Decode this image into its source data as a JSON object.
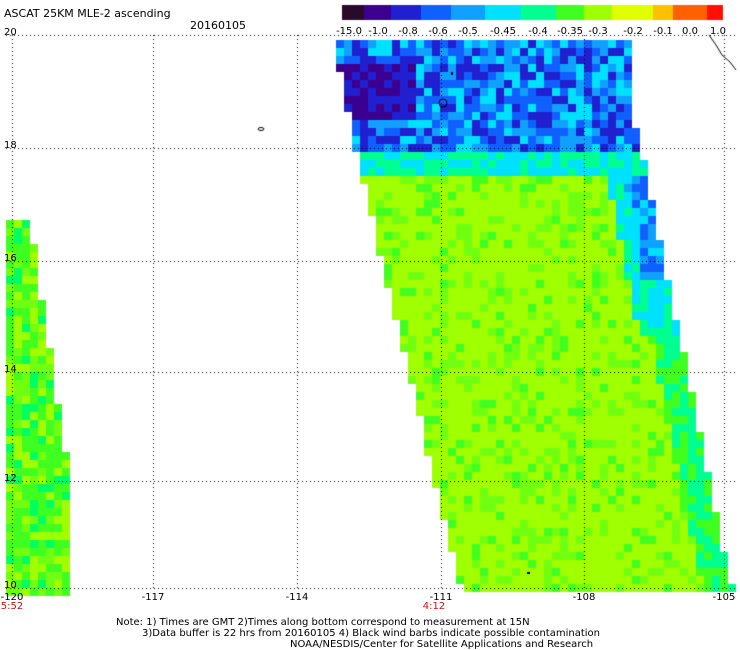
{
  "header": {
    "title": "ASCAT 25KM MLE-2 ascending",
    "date": "20160105"
  },
  "colorbar": {
    "labels": [
      "-15.0",
      "-1.0",
      "-0.8",
      "-0.6",
      "-0.5",
      "-0.45",
      "-0.4",
      "-0.35",
      "-0.3",
      "-0.2",
      "-0.1",
      "0.0",
      "1.0"
    ],
    "colors": [
      "#2a0a2a",
      "#3b0090",
      "#2020d0",
      "#1060ff",
      "#10a0ff",
      "#00e0ff",
      "#00ff90",
      "#40ff20",
      "#a0ff00",
      "#e0ff00",
      "#ffc000",
      "#ff6000",
      "#ff1000"
    ]
  },
  "map": {
    "lat_labels": [
      "20",
      "18",
      "16",
      "14",
      "12",
      "10"
    ],
    "lon_labels": [
      "-120",
      "-117",
      "-114",
      "-111",
      "-108",
      "-105"
    ],
    "time_labels": [
      "5:52",
      "4:12"
    ]
  },
  "footer": {
    "note1": "Note: 1) Times are GMT 2)Times along bottom correspond to measurement at 15N",
    "note2": "3)Data buffer is 22 hrs from 20160105 4) Black wind barbs indicate possible contamination",
    "note3": "NOAA/NESDIS/Center for Satellite Applications and Research"
  }
}
